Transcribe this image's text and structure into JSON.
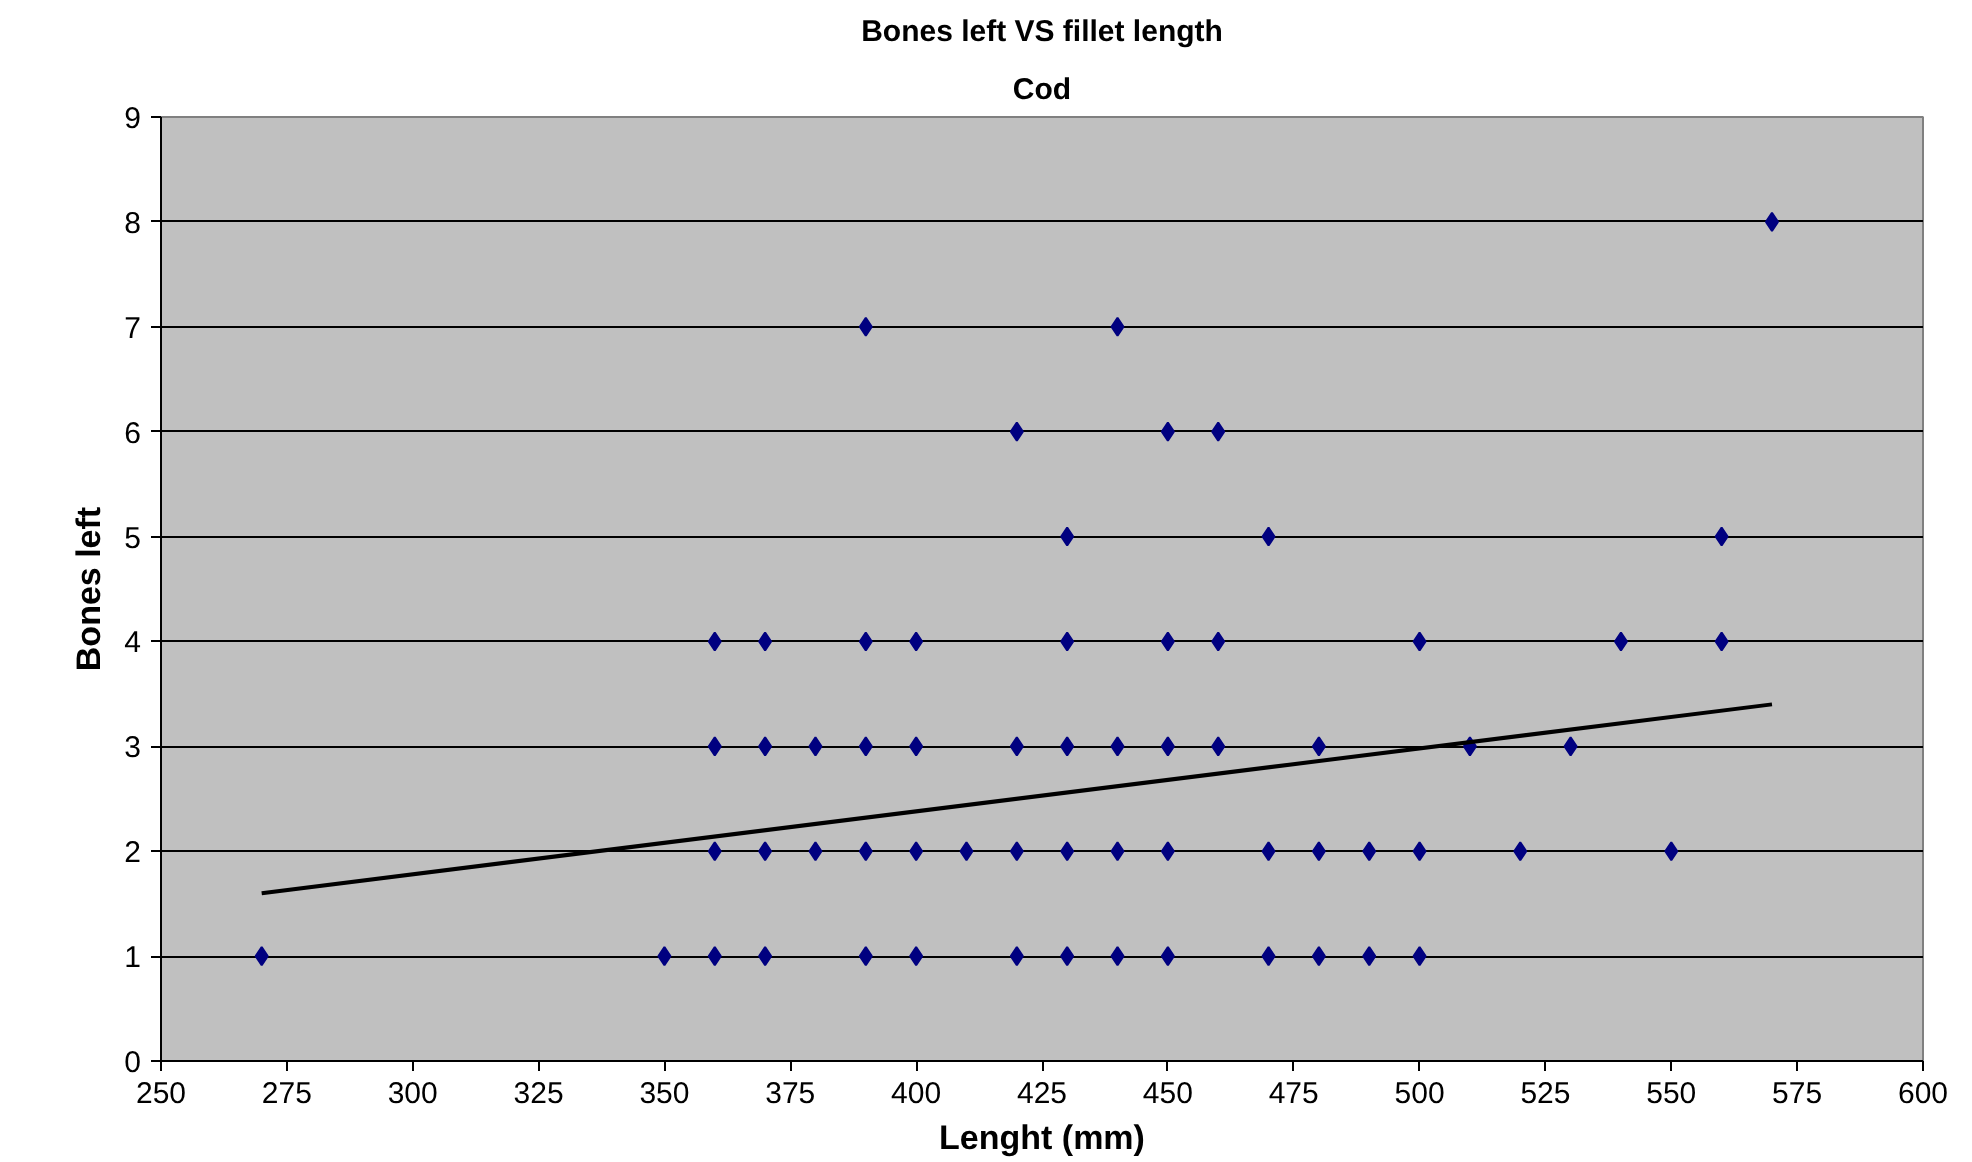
{
  "chart_data": {
    "type": "scatter",
    "title": "Bones left VS fillet length",
    "subtitle": "Cod",
    "xlabel": "Lenght (mm)",
    "ylabel": "Bones left",
    "xlim": [
      250,
      600
    ],
    "xticks": [
      250,
      275,
      300,
      325,
      350,
      375,
      400,
      425,
      450,
      475,
      500,
      525,
      550,
      575,
      600
    ],
    "ylim": [
      0,
      9
    ],
    "yticks": [
      0,
      1,
      2,
      3,
      4,
      5,
      6,
      7,
      8,
      9
    ],
    "grid": "y",
    "series": [
      {
        "color": "#000080",
        "marker": "diamond",
        "x": [
          270,
          350,
          360,
          370,
          390,
          400,
          420,
          430,
          440,
          450,
          470,
          480,
          490,
          500,
          360,
          370,
          380,
          390,
          400,
          410,
          420,
          430,
          440,
          450,
          470,
          480,
          490,
          500,
          520,
          550,
          360,
          370,
          380,
          390,
          400,
          420,
          430,
          440,
          450,
          460,
          480,
          510,
          530,
          360,
          370,
          390,
          400,
          430,
          450,
          460,
          500,
          540,
          560,
          430,
          470,
          560,
          420,
          450,
          460,
          390,
          440,
          570
        ],
        "values": [
          1,
          1,
          1,
          1,
          1,
          1,
          1,
          1,
          1,
          1,
          1,
          1,
          1,
          1,
          2,
          2,
          2,
          2,
          2,
          2,
          2,
          2,
          2,
          2,
          2,
          2,
          2,
          2,
          2,
          2,
          3,
          3,
          3,
          3,
          3,
          3,
          3,
          3,
          3,
          3,
          3,
          3,
          3,
          4,
          4,
          4,
          4,
          4,
          4,
          4,
          4,
          4,
          4,
          5,
          5,
          5,
          6,
          6,
          6,
          7,
          7,
          8
        ]
      },
      {
        "type": "line",
        "color": "#000000",
        "x": [
          270,
          570
        ],
        "values": [
          1.6,
          3.4
        ]
      }
    ]
  }
}
